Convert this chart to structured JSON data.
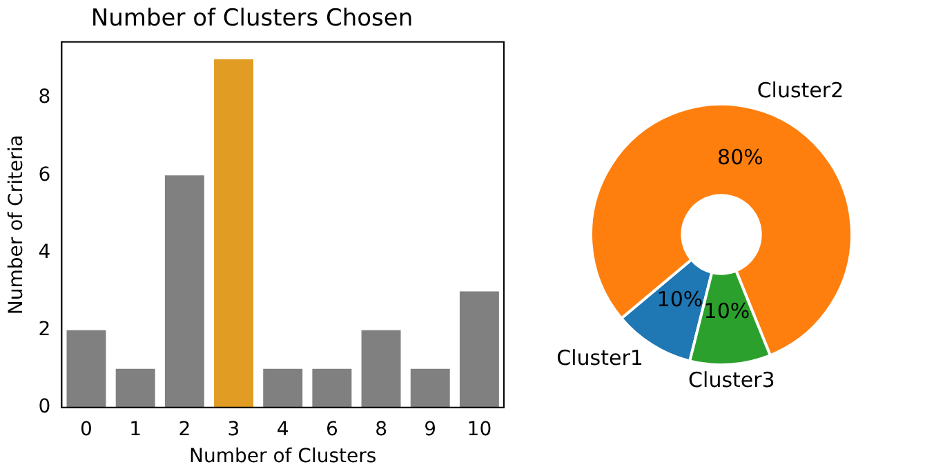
{
  "chart_data": [
    {
      "type": "bar",
      "title": "Number of Clusters Chosen",
      "xlabel": "Number of Clusters",
      "ylabel": "Number of Criteria",
      "categories": [
        "0",
        "1",
        "2",
        "3",
        "4",
        "6",
        "8",
        "9",
        "10"
      ],
      "values": [
        2,
        1,
        6,
        9,
        1,
        1,
        2,
        1,
        3
      ],
      "colors": [
        "#808080",
        "#808080",
        "#808080",
        "#e19c24",
        "#808080",
        "#808080",
        "#808080",
        "#808080",
        "#808080"
      ],
      "ylim": [
        0,
        9.45
      ],
      "yticks": [
        0,
        2,
        4,
        6,
        8
      ],
      "grid": false,
      "legend": false
    },
    {
      "type": "donut",
      "categories": [
        "Cluster1",
        "Cluster2",
        "Cluster3"
      ],
      "values": [
        10,
        80,
        10
      ],
      "colors": [
        "#1f77b4",
        "#ff7f0e",
        "#2ca02c"
      ],
      "value_labels": [
        "10%",
        "80%",
        "10%"
      ],
      "legend": false
    }
  ]
}
